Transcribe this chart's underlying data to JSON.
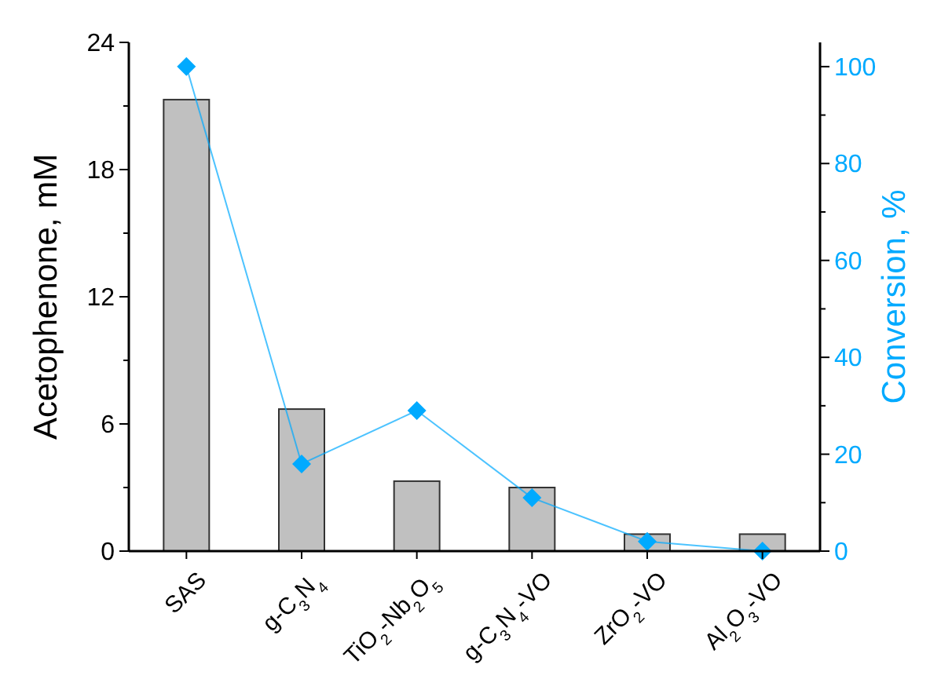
{
  "chart_data": {
    "type": "bar",
    "categories": [
      "SAS",
      "g-C$_{3}$N$_{4}$",
      "TiO$_{2}$-Nb$_{2}$O$_{5}$",
      "g-C$_{3}$N$_{4}$-VO",
      "ZrO$_{2}$-VO",
      "Al$_{2}$O$_{3}$-VO"
    ],
    "series": [
      {
        "color": "#c0c0c0",
        "values": [
          21.3,
          6.7,
          3.3,
          3.0,
          0.8,
          0.8
        ]
      },
      {
        "type": "line",
        "axis": "y2",
        "color": "#00aaff",
        "marker": "diamond",
        "line_style": "solid",
        "values": [
          100,
          18,
          29,
          11,
          2,
          0
        ]
      }
    ],
    "ylabel": "Acetophenone, mM",
    "y2label": "Conversion, %",
    "ylim": [
      0,
      24
    ],
    "yticks": [
      0,
      {
        "value": 3,
        "label": null
      },
      6,
      {
        "value": 9,
        "label": null
      },
      12,
      {
        "value": 15,
        "label": null
      },
      18,
      {
        "value": 21,
        "label": null
      },
      24
    ],
    "y2lim": [
      0,
      105
    ],
    "y2ticks": [
      0,
      {
        "value": 10,
        "label": null
      },
      20,
      {
        "value": 30,
        "label": null
      },
      40,
      {
        "value": 50,
        "label": null
      },
      60,
      {
        "value": 70,
        "label": null
      },
      80,
      {
        "value": 90,
        "label": null
      },
      100
    ],
    "grid": false
  }
}
